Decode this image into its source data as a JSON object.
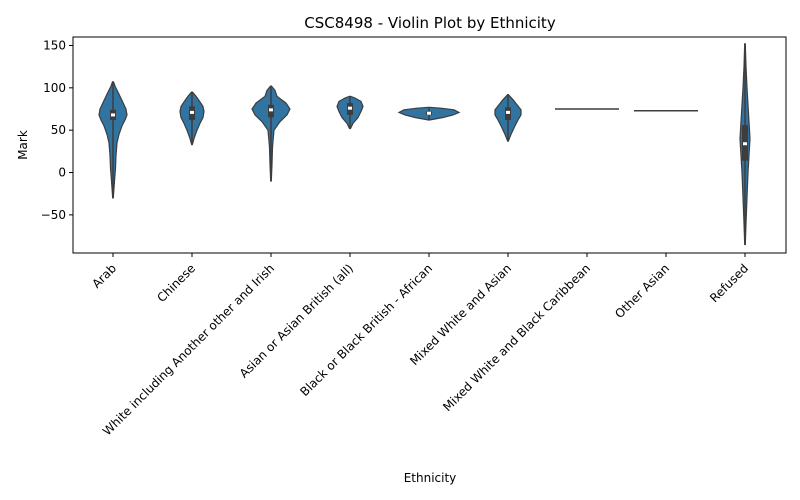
{
  "chart_data": {
    "type": "violin",
    "title": "CSC8498 - Violin Plot by Ethnicity",
    "xlabel": "Ethnicity",
    "ylabel": "Mark",
    "ylim": [
      -95,
      160
    ],
    "yticks": [
      -50,
      0,
      50,
      100,
      150
    ],
    "grid": false,
    "violin_color": "#3274a1",
    "box_color": "#3d3d3d",
    "median_color": "#ffffff",
    "categories": [
      "Arab",
      "Chinese",
      "White including Another other and Irish",
      "Asian or Asian British (all)",
      "Black or Black British - African",
      "Mixed White and Asian",
      "Mixed White and Black Caribbean",
      "Other Asian",
      "Refused"
    ],
    "violins": [
      {
        "category": "Arab",
        "min": -30,
        "max": 107,
        "q1": 62,
        "median": 68,
        "q3": 74,
        "profile": [
          [
            -30,
            0.3
          ],
          [
            -10,
            1.5
          ],
          [
            5,
            2.5
          ],
          [
            20,
            3
          ],
          [
            35,
            4
          ],
          [
            45,
            6
          ],
          [
            55,
            9
          ],
          [
            62,
            12
          ],
          [
            68,
            14
          ],
          [
            75,
            13
          ],
          [
            85,
            9
          ],
          [
            95,
            5
          ],
          [
            102,
            2
          ],
          [
            107,
            0.5
          ]
        ]
      },
      {
        "category": "Chinese",
        "min": 33,
        "max": 95,
        "q1": 62,
        "median": 71,
        "q3": 78,
        "profile": [
          [
            33,
            0.3
          ],
          [
            40,
            2
          ],
          [
            50,
            5
          ],
          [
            58,
            8
          ],
          [
            65,
            11
          ],
          [
            72,
            12
          ],
          [
            78,
            11
          ],
          [
            85,
            7
          ],
          [
            90,
            4
          ],
          [
            95,
            0.5
          ]
        ]
      },
      {
        "category": "White including Another other and Irish",
        "min": -10,
        "max": 102,
        "q1": 65,
        "median": 74,
        "q3": 80,
        "profile": [
          [
            -10,
            0.3
          ],
          [
            10,
            1
          ],
          [
            30,
            1.5
          ],
          [
            50,
            3
          ],
          [
            60,
            9
          ],
          [
            68,
            16
          ],
          [
            75,
            19
          ],
          [
            82,
            15
          ],
          [
            90,
            6
          ],
          [
            97,
            4
          ],
          [
            102,
            0.5
          ]
        ]
      },
      {
        "category": "Asian or Asian British (all)",
        "min": 52,
        "max": 90,
        "q1": 68,
        "median": 76,
        "q3": 82,
        "profile": [
          [
            52,
            0.5
          ],
          [
            58,
            3
          ],
          [
            65,
            8
          ],
          [
            72,
            11
          ],
          [
            78,
            13
          ],
          [
            84,
            11
          ],
          [
            88,
            5
          ],
          [
            90,
            0.5
          ]
        ]
      },
      {
        "category": "Black or Black British - African",
        "min": 62,
        "max": 77,
        "q1": 68,
        "median": 70,
        "q3": 72,
        "profile": [
          [
            62,
            0.5
          ],
          [
            65,
            14
          ],
          [
            68,
            24
          ],
          [
            71,
            30
          ],
          [
            74,
            25
          ],
          [
            76,
            12
          ],
          [
            77,
            0.5
          ]
        ]
      },
      {
        "category": "Mixed White and Asian",
        "min": 37,
        "max": 92,
        "q1": 62,
        "median": 71,
        "q3": 77,
        "profile": [
          [
            37,
            0.3
          ],
          [
            45,
            3
          ],
          [
            55,
            7
          ],
          [
            62,
            10
          ],
          [
            68,
            13
          ],
          [
            74,
            13
          ],
          [
            80,
            9
          ],
          [
            86,
            5
          ],
          [
            92,
            0.3
          ]
        ]
      },
      {
        "category": "Mixed White and Black Caribbean",
        "value": 75,
        "single": true,
        "width": 32
      },
      {
        "category": "Other Asian",
        "value": 73,
        "single": true,
        "width": 32
      },
      {
        "category": "Refused",
        "min": -85,
        "max": 152,
        "q1": 14,
        "median": 34,
        "q3": 56,
        "profile": [
          [
            -85,
            0.3
          ],
          [
            -60,
            1
          ],
          [
            -30,
            2
          ],
          [
            0,
            3
          ],
          [
            20,
            4
          ],
          [
            40,
            5
          ],
          [
            60,
            4
          ],
          [
            80,
            3
          ],
          [
            100,
            2
          ],
          [
            125,
            1
          ],
          [
            152,
            0.3
          ]
        ]
      }
    ]
  }
}
